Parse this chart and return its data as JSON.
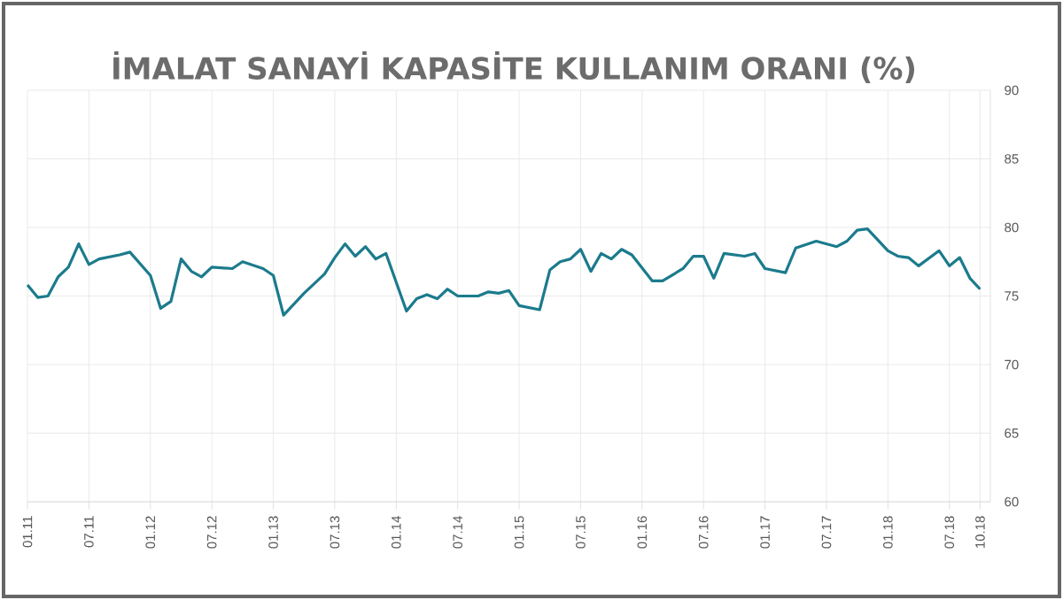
{
  "chart_data": {
    "type": "line",
    "title": "İMALAT SANAYİ KAPASİTE KULLANIM ORANI (%)",
    "x": [
      "2011-01",
      "2011-02",
      "2011-03",
      "2011-04",
      "2011-05",
      "2011-06",
      "2011-07",
      "2011-08",
      "2011-10",
      "2011-11",
      "2012-01",
      "2012-02",
      "2012-03",
      "2012-04",
      "2012-05",
      "2012-06",
      "2012-07",
      "2012-09",
      "2012-10",
      "2012-12",
      "2013-01",
      "2013-02",
      "2013-04",
      "2013-06",
      "2013-07",
      "2013-08",
      "2013-09",
      "2013-10",
      "2013-11",
      "2013-12",
      "2014-02",
      "2014-03",
      "2014-04",
      "2014-05",
      "2014-06",
      "2014-07",
      "2014-09",
      "2014-10",
      "2014-11",
      "2014-12",
      "2015-01",
      "2015-03",
      "2015-04",
      "2015-05",
      "2015-06",
      "2015-07",
      "2015-08",
      "2015-09",
      "2015-10",
      "2015-11",
      "2015-12",
      "2016-02",
      "2016-03",
      "2016-05",
      "2016-06",
      "2016-07",
      "2016-08",
      "2016-09",
      "2016-11",
      "2016-12",
      "2017-01",
      "2017-03",
      "2017-04",
      "2017-06",
      "2017-08",
      "2017-09",
      "2017-10",
      "2017-11",
      "2018-01",
      "2018-02",
      "2018-03",
      "2018-04",
      "2018-06",
      "2018-07",
      "2018-08",
      "2018-09",
      "2018-10"
    ],
    "values": [
      75.8,
      74.9,
      75.0,
      76.4,
      77.1,
      78.8,
      77.3,
      77.7,
      78.0,
      78.2,
      76.5,
      74.1,
      74.6,
      77.7,
      76.8,
      76.4,
      77.1,
      77.0,
      77.5,
      77.0,
      76.5,
      73.6,
      75.2,
      76.6,
      77.8,
      78.8,
      77.9,
      78.6,
      77.7,
      78.1,
      73.9,
      74.8,
      75.1,
      74.8,
      75.5,
      75.0,
      75.0,
      75.3,
      75.2,
      75.4,
      74.3,
      74.0,
      76.9,
      77.5,
      77.7,
      78.4,
      76.8,
      78.1,
      77.7,
      78.4,
      78.0,
      76.1,
      76.1,
      77.0,
      77.9,
      77.9,
      76.3,
      78.1,
      77.9,
      78.1,
      77.0,
      76.7,
      78.5,
      79.0,
      78.6,
      79.0,
      79.8,
      79.9,
      78.3,
      77.9,
      77.8,
      77.2,
      78.3,
      77.2,
      77.8,
      76.3,
      75.5
    ],
    "color": "#1b7b8c",
    "xlim": [
      "2011-01",
      "2018-11"
    ],
    "xticks": [
      {
        "value": "2011-01",
        "label": "01.11"
      },
      {
        "value": "2011-07",
        "label": "07.11"
      },
      {
        "value": "2012-01",
        "label": "01.12"
      },
      {
        "value": "2012-07",
        "label": "07.12"
      },
      {
        "value": "2013-01",
        "label": "01.13"
      },
      {
        "value": "2013-07",
        "label": "07.13"
      },
      {
        "value": "2014-01",
        "label": "01.14"
      },
      {
        "value": "2014-07",
        "label": "07.14"
      },
      {
        "value": "2015-01",
        "label": "01.15"
      },
      {
        "value": "2015-07",
        "label": "07.15"
      },
      {
        "value": "2016-01",
        "label": "01.16"
      },
      {
        "value": "2016-07",
        "label": "07.16"
      },
      {
        "value": "2017-01",
        "label": "01.17"
      },
      {
        "value": "2017-07",
        "label": "07.17"
      },
      {
        "value": "2018-01",
        "label": "01.18"
      },
      {
        "value": "2018-07",
        "label": "07.18"
      },
      {
        "value": "2018-10",
        "label": "10.18"
      }
    ],
    "ylim": [
      60,
      90
    ],
    "yticks": [
      60,
      65,
      70,
      75,
      80,
      85,
      90
    ],
    "grid": true
  }
}
